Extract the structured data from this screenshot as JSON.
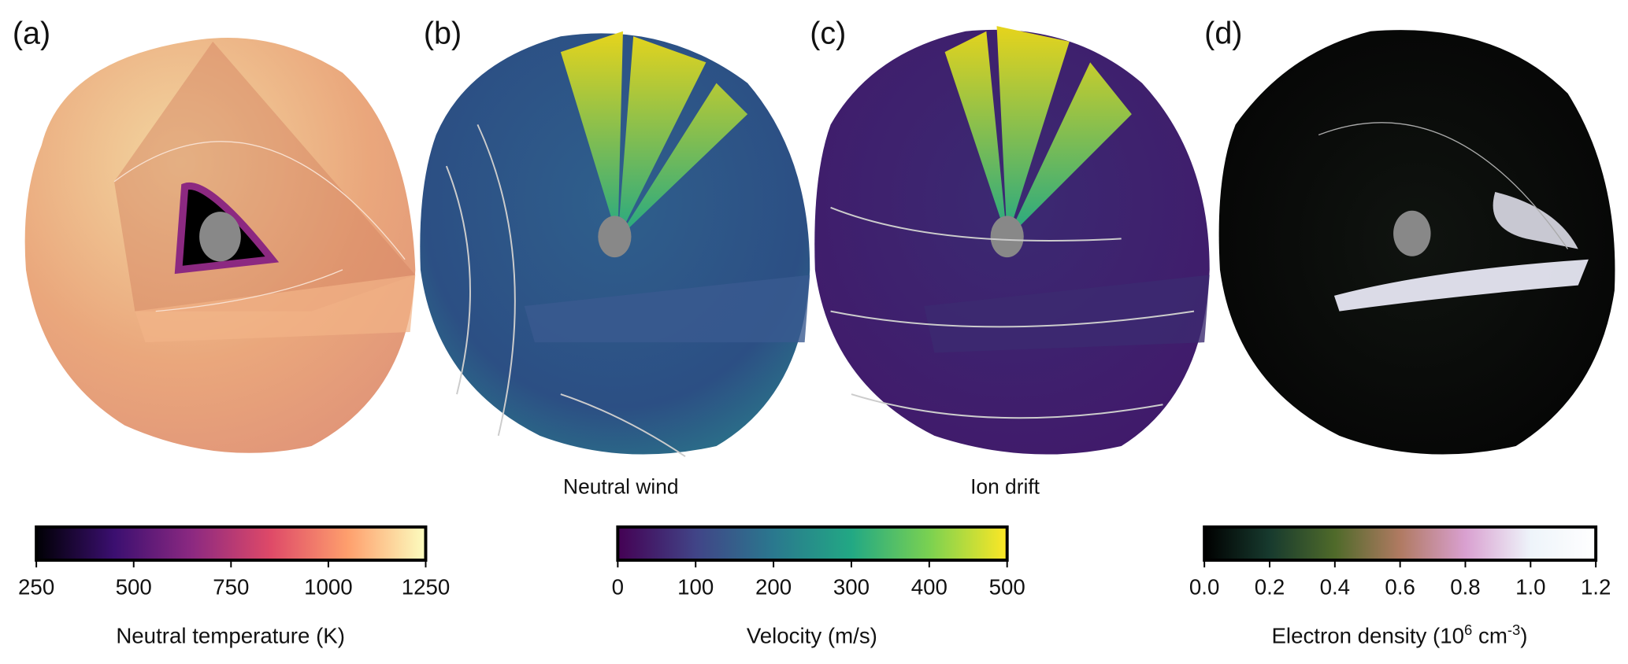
{
  "panels": [
    {
      "label": "(a)"
    },
    {
      "label": "(b)",
      "caption": "Neutral wind"
    },
    {
      "label": "(c)",
      "caption": "Ion drift"
    },
    {
      "label": "(d)"
    }
  ],
  "colorbars": [
    {
      "label": "Neutral temperature (K)",
      "lim": [
        250,
        1250
      ],
      "ticks": [
        250,
        500,
        750,
        1000,
        1250
      ],
      "colors": [
        "#000004",
        "#3b0f70",
        "#8c2981",
        "#de4968",
        "#fe9f6d",
        "#fcfdbf"
      ]
    },
    {
      "label": "Velocity (m/s)",
      "lim": [
        0,
        500
      ],
      "ticks": [
        0,
        100,
        200,
        300,
        400,
        500
      ],
      "colors": [
        "#440154",
        "#414487",
        "#2a788e",
        "#22a884",
        "#7ad151",
        "#fde725"
      ]
    },
    {
      "label_parts": [
        "Electron density (10",
        "6",
        " cm",
        "-3",
        ")"
      ],
      "lim": [
        0,
        1.2
      ],
      "ticks": [
        {
          "value": 0,
          "label": "0.0"
        },
        {
          "value": 0.2,
          "label": "0.2"
        },
        {
          "value": 0.4,
          "label": "0.4"
        },
        {
          "value": 0.6,
          "label": "0.6"
        },
        {
          "value": 0.8,
          "label": "0.8"
        },
        {
          "value": 1,
          "label": "1.0"
        },
        {
          "value": 1.2,
          "label": "1.2"
        }
      ],
      "colors": [
        "#000000",
        "#173a2e",
        "#4f6a2a",
        "#b07a62",
        "#d9a0d0",
        "#eef4fa",
        "#ffffff"
      ]
    }
  ]
}
